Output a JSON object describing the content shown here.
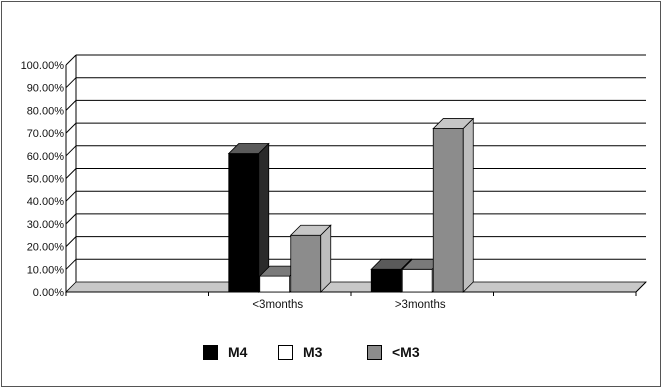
{
  "chart_data": {
    "type": "bar",
    "categories": [
      "<3months",
      ">3months"
    ],
    "series": [
      {
        "name": "M4",
        "values": [
          0.61,
          0.1
        ],
        "color": "#000000",
        "side": "#2a2a2a",
        "top": "#5a5a5a"
      },
      {
        "name": "M3",
        "values": [
          0.07,
          0.1
        ],
        "color": "#ffffff",
        "side": "#e6e6e6",
        "top": "#7a7a7a"
      },
      {
        "name": "<M3",
        "values": [
          0.25,
          0.72
        ],
        "color": "#8c8c8c",
        "side": "#bdbdbd",
        "top": "#c6c6c6"
      }
    ],
    "y_ticks": [
      "0.00%",
      "10.00%",
      "20.00%",
      "30.00%",
      "40.00%",
      "50.00%",
      "60.00%",
      "70.00%",
      "80.00%",
      "90.00%",
      "100.00%"
    ],
    "ylim": [
      0,
      1
    ],
    "grid": true,
    "legend_position": "bottom",
    "title": "",
    "xlabel": "",
    "ylabel": ""
  }
}
